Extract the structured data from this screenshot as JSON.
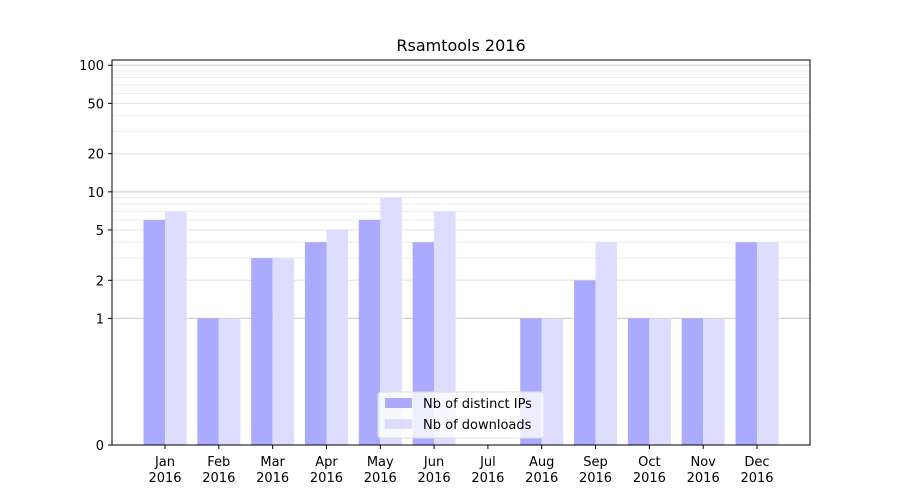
{
  "chart_data": {
    "type": "bar",
    "title": "Rsamtools 2016",
    "xlabel": "",
    "ylabel": "",
    "y_scale": "symlog",
    "ylim": [
      0,
      110
    ],
    "y_ticks": [
      0,
      1,
      2,
      5,
      10,
      20,
      50,
      100
    ],
    "grid": true,
    "legend_position": "lower-center",
    "categories": [
      "Jan\n2016",
      "Feb\n2016",
      "Mar\n2016",
      "Apr\n2016",
      "May\n2016",
      "Jun\n2016",
      "Jul\n2016",
      "Aug\n2016",
      "Sep\n2016",
      "Oct\n2016",
      "Nov\n2016",
      "Dec\n2016"
    ],
    "series": [
      {
        "name": "Nb of distinct IPs",
        "color": "#aaaaff",
        "values": [
          6,
          1,
          3,
          4,
          6,
          4,
          0,
          1,
          2,
          1,
          1,
          4
        ]
      },
      {
        "name": "Nb of downloads",
        "color": "#ddddff",
        "values": [
          7,
          1,
          3,
          5,
          9,
          7,
          0,
          1,
          4,
          1,
          1,
          4
        ]
      }
    ]
  }
}
